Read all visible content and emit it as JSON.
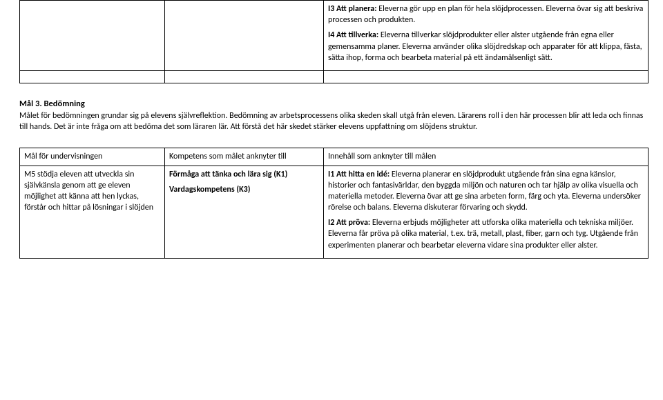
{
  "table1": {
    "row1_col3_part1_label": "I3 Att planera: ",
    "row1_col3_part1_text": "Eleverna gör upp en plan för hela slöjdprocessen. Eleverna övar sig att beskriva processen och produkten.",
    "row1_col3_part2_label": "I4 Att tillverka: ",
    "row1_col3_part2_text": "Eleverna tillverkar slöjdprodukter eller alster utgående från egna eller gemensamma planer. Eleverna använder olika slöjdredskap och apparater för att klippa, fästa, sätta ihop, forma och bearbeta material på ett ändamålsenligt sätt."
  },
  "section": {
    "heading": "Mål 3. Bedömning",
    "paragraph": "Målet för bedömningen grundar sig på elevens självreflektion. Bedömning av arbetsprocessens olika skeden skall utgå från eleven. Lärarens roll i den här processen blir att leda och finnas till hands. Det är inte fråga om att bedöma det som läraren lär. Att förstå det här skedet stärker elevens uppfattning om slöjdens struktur."
  },
  "table2": {
    "headers": {
      "col1": "Mål för undervisningen",
      "col2": "Kompetens som målet anknyter till",
      "col3": "Innehåll som anknyter till målen"
    },
    "row": {
      "col1": "M5 stödja eleven att utveckla sin självkänsla genom att ge eleven möjlighet att känna att hen lyckas, förstår och hittar på lösningar i slöjden",
      "col2_line1": "Förmåga att tänka och lära sig (K1)",
      "col2_line2": "Vardagskompetens (K3)",
      "col3_i1_label": "I1 Att hitta en idé: ",
      "col3_i1_text": "Eleverna planerar en slöjdprodukt utgående från sina egna känslor, historier och fantasivärldar, den byggda miljön och naturen och tar hjälp av olika visuella och materiella metoder. Eleverna övar att ge sina arbeten form, färg och yta. Eleverna undersöker rörelse och balans. Eleverna diskuterar förvaring och skydd.",
      "col3_i2_label": "I2 Att pröva: ",
      "col3_i2_text": "Eleverna erbjuds möjligheter att utforska olika materiella och tekniska miljöer. Eleverna får pröva på olika material, t.ex. trä, metall, plast, fiber, garn och tyg. Utgående från experimenten planerar och bearbetar eleverna vidare sina produkter eller alster."
    }
  }
}
